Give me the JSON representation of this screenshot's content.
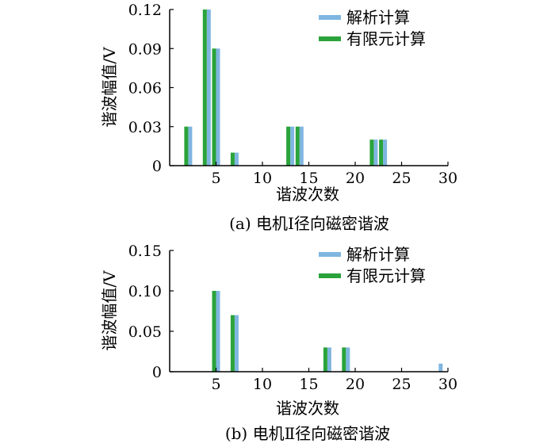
{
  "colors": {
    "analytic": "#7fb6e0",
    "fem": "#2aa33a",
    "axis": "#000000"
  },
  "chart_data": [
    {
      "type": "bar",
      "caption": "(a)  电机Ⅰ径向磁密谐波",
      "xlabel": "谐波次数",
      "ylabel": "谐波幅值/V",
      "xlim": [
        0,
        30
      ],
      "ylim": [
        0,
        0.12
      ],
      "xticks": [
        5,
        10,
        15,
        20,
        25,
        30
      ],
      "xtick_labels": [
        "5",
        "10",
        "15",
        "20",
        "25",
        "30"
      ],
      "yticks": [
        0,
        0.03,
        0.06,
        0.09,
        0.12
      ],
      "ytick_labels": [
        "0",
        "0.03",
        "0.06",
        "0.09",
        "0.12"
      ],
      "legend_position": "top-right",
      "series": [
        {
          "name": "解析计算",
          "color_key": "analytic",
          "x": [
            2,
            4,
            5,
            7,
            13,
            14,
            22,
            23
          ],
          "values": [
            0.03,
            0.12,
            0.09,
            0.01,
            0.03,
            0.03,
            0.02,
            0.02
          ]
        },
        {
          "name": "有限元计算",
          "color_key": "fem",
          "x": [
            2,
            4,
            5,
            7,
            13,
            14,
            22,
            23
          ],
          "values": [
            0.03,
            0.12,
            0.09,
            0.01,
            0.03,
            0.03,
            0.02,
            0.02
          ]
        }
      ]
    },
    {
      "type": "bar",
      "caption": "(b)  电机Ⅱ径向磁密谐波",
      "xlabel": "谐波次数",
      "ylabel": "谐波幅值/V",
      "xlim": [
        0,
        30
      ],
      "ylim": [
        0,
        0.15
      ],
      "xticks": [
        5,
        10,
        15,
        20,
        25,
        30
      ],
      "xtick_labels": [
        "5",
        "10",
        "15",
        "20",
        "25",
        "30"
      ],
      "yticks": [
        0,
        0.05,
        0.1,
        0.15
      ],
      "ytick_labels": [
        "0",
        "0.05",
        "0.10",
        "0.15"
      ],
      "legend_position": "top-right",
      "series": [
        {
          "name": "解析计算",
          "color_key": "analytic",
          "x": [
            5,
            7,
            17,
            19,
            29
          ],
          "values": [
            0.1,
            0.07,
            0.03,
            0.03,
            0.01
          ]
        },
        {
          "name": "有限元计算",
          "color_key": "fem",
          "x": [
            5,
            7,
            17,
            19
          ],
          "values": [
            0.1,
            0.07,
            0.03,
            0.03
          ]
        }
      ]
    }
  ]
}
